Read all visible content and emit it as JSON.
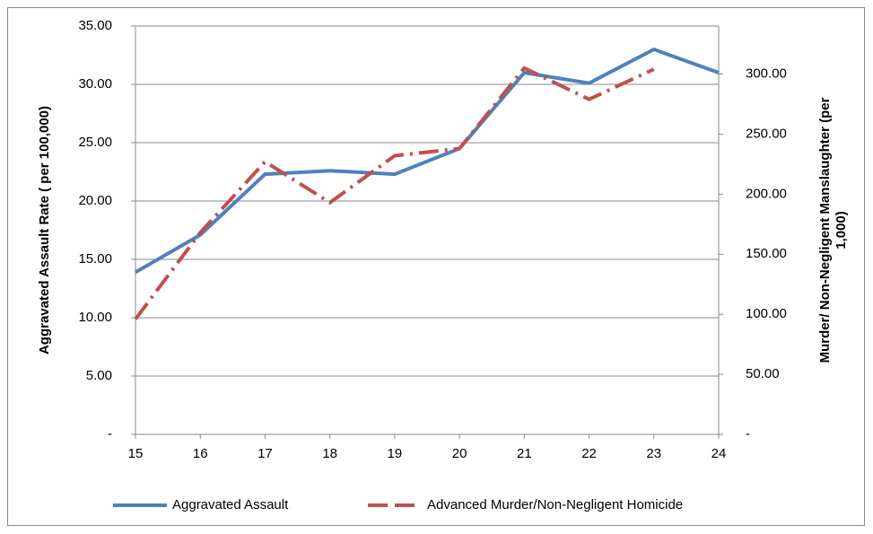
{
  "chart_data": {
    "type": "line",
    "x": [
      15,
      16,
      17,
      18,
      19,
      20,
      21,
      22,
      23,
      24
    ],
    "xlim": [
      15,
      24
    ],
    "xticks": [
      15,
      16,
      17,
      18,
      19,
      20,
      21,
      22,
      23,
      24
    ],
    "ylabel": "Aggravated Assault  Rate ( per 100,000)",
    "y2label": [
      "Murder/ Non-Negligent Manslaughter  (per",
      "1,000)"
    ],
    "ylim": [
      0,
      35
    ],
    "yticks": [
      {
        "value": 0,
        "label": "-"
      },
      {
        "value": 5,
        "label": "5.00"
      },
      {
        "value": 10,
        "label": "10.00"
      },
      {
        "value": 15,
        "label": "15.00"
      },
      {
        "value": 20,
        "label": "20.00"
      },
      {
        "value": 25,
        "label": "25.00"
      },
      {
        "value": 30,
        "label": "30.00"
      },
      {
        "value": 35,
        "label": "35.00"
      }
    ],
    "y2lim": [
      0,
      340
    ],
    "y2ticks": [
      {
        "value": 0,
        "label": "-"
      },
      {
        "value": 50,
        "label": "50.00"
      },
      {
        "value": 100,
        "label": "100.00"
      },
      {
        "value": 150,
        "label": "150.00"
      },
      {
        "value": 200,
        "label": "200.00"
      },
      {
        "value": 250,
        "label": "250.00"
      },
      {
        "value": 300,
        "label": "300.00"
      }
    ],
    "grid": true,
    "legend": "bottom",
    "series": [
      {
        "name": "Aggravated Assault",
        "color": "#4f81bd",
        "values": [
          13.9,
          17.1,
          22.3,
          22.6,
          22.3,
          24.5,
          31.0,
          30.1,
          33.0,
          31.0
        ]
      },
      {
        "name": "Advanced Murder/Non-Negligent Homicide",
        "color": "#c0504d",
        "axis": "y2",
        "values": [
          96,
          168,
          227,
          193,
          232,
          238,
          305,
          279,
          304,
          null
        ]
      }
    ]
  }
}
